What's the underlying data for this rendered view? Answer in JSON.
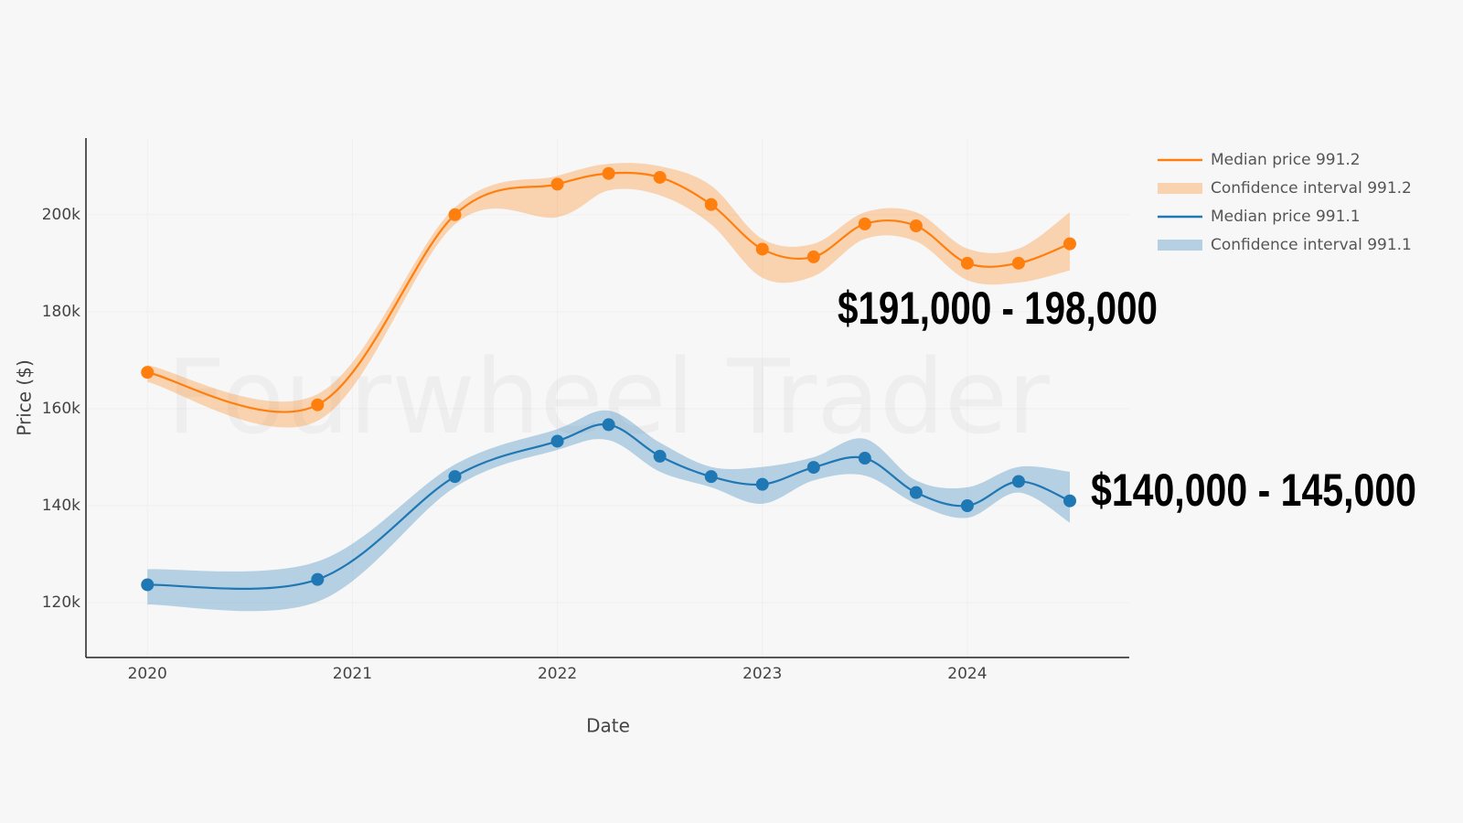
{
  "chart_data": {
    "type": "line",
    "watermark": "Fourwheel Trader",
    "x_label": "Date",
    "y_label": "Price ($)",
    "xlim": [
      2019.7,
      2024.79
    ],
    "xticks": [
      2020,
      2021,
      2022,
      2023,
      2024
    ],
    "ylim": [
      108700,
      215800
    ],
    "yticks": [
      {
        "value": 120000,
        "label": "120k"
      },
      {
        "value": 140000,
        "label": "140k"
      },
      {
        "value": 160000,
        "label": "160k"
      },
      {
        "value": 180000,
        "label": "180k"
      },
      {
        "value": 200000,
        "label": "200k"
      }
    ],
    "grid": true,
    "legend": "top-right",
    "x": [
      2020.0,
      2020.83,
      2021.5,
      2022.0,
      2022.25,
      2022.5,
      2022.75,
      2023.0,
      2023.25,
      2023.5,
      2023.75,
      2024.0,
      2024.25,
      2024.5
    ],
    "series": [
      {
        "name": "Median price 991.2",
        "type": "line",
        "color": "#ff7f0e",
        "values": [
          167500,
          160800,
          200000,
          206300,
          208500,
          207700,
          202100,
          192900,
          191300,
          198100,
          197700,
          190000,
          190000,
          194000
        ]
      },
      {
        "name": "Confidence interval 991.2",
        "type": "band",
        "color": "#ff7f0e",
        "lower": [
          165500,
          157500,
          198000,
          199500,
          205000,
          204000,
          198000,
          187000,
          187300,
          195000,
          194500,
          186500,
          186000,
          188500
        ],
        "upper": [
          169000,
          163000,
          201500,
          208000,
          210500,
          210000,
          206000,
          195000,
          194000,
          200500,
          200500,
          193000,
          193000,
          200500
        ]
      },
      {
        "name": "Median price 991.1",
        "type": "line",
        "color": "#1f77b4",
        "values": [
          123700,
          124800,
          146000,
          153300,
          156700,
          150200,
          146000,
          144400,
          147900,
          149800,
          142700,
          140000,
          145000,
          141000
        ]
      },
      {
        "name": "Confidence interval 991.1",
        "type": "band",
        "color": "#1f77b4",
        "lower": [
          119600,
          120200,
          143800,
          151500,
          153500,
          147000,
          143800,
          140400,
          145200,
          146200,
          140400,
          137500,
          142700,
          136500
        ],
        "upper": [
          126900,
          128500,
          148500,
          155800,
          159600,
          153000,
          148000,
          148000,
          150000,
          153800,
          145200,
          143800,
          148000,
          147000
        ]
      }
    ],
    "annotations": [
      "$191,000 - 198,000",
      "$140,000 - 145,000"
    ]
  }
}
